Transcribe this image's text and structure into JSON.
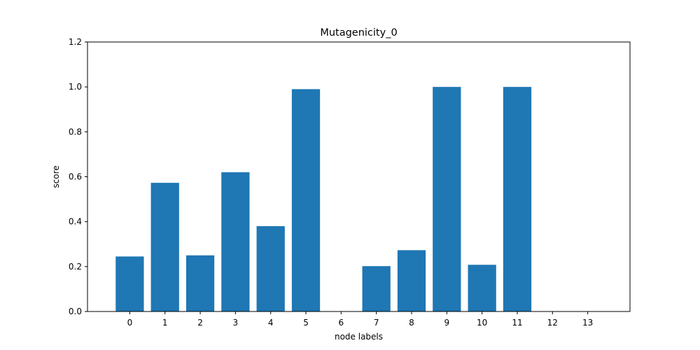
{
  "chart_data": {
    "type": "bar",
    "title": "Mutagenicity_0",
    "xlabel": "node labels",
    "ylabel": "score",
    "categories": [
      "0",
      "1",
      "2",
      "3",
      "4",
      "5",
      "6",
      "7",
      "8",
      "9",
      "10",
      "11",
      "12",
      "13"
    ],
    "values": [
      0.245,
      0.573,
      0.25,
      0.62,
      0.38,
      0.99,
      0.0,
      0.202,
      0.273,
      1.0,
      0.208,
      1.0,
      0.0,
      0.0
    ],
    "ylim": [
      0,
      1.2
    ],
    "yticks": [
      0.0,
      0.2,
      0.4,
      0.6,
      0.8,
      1.0,
      1.2
    ],
    "ytick_labels": [
      "0.0",
      "0.2",
      "0.4",
      "0.6",
      "0.8",
      "1.0",
      "1.2"
    ],
    "bar_color": "#1f77b4",
    "grid": false,
    "legend": "none"
  }
}
